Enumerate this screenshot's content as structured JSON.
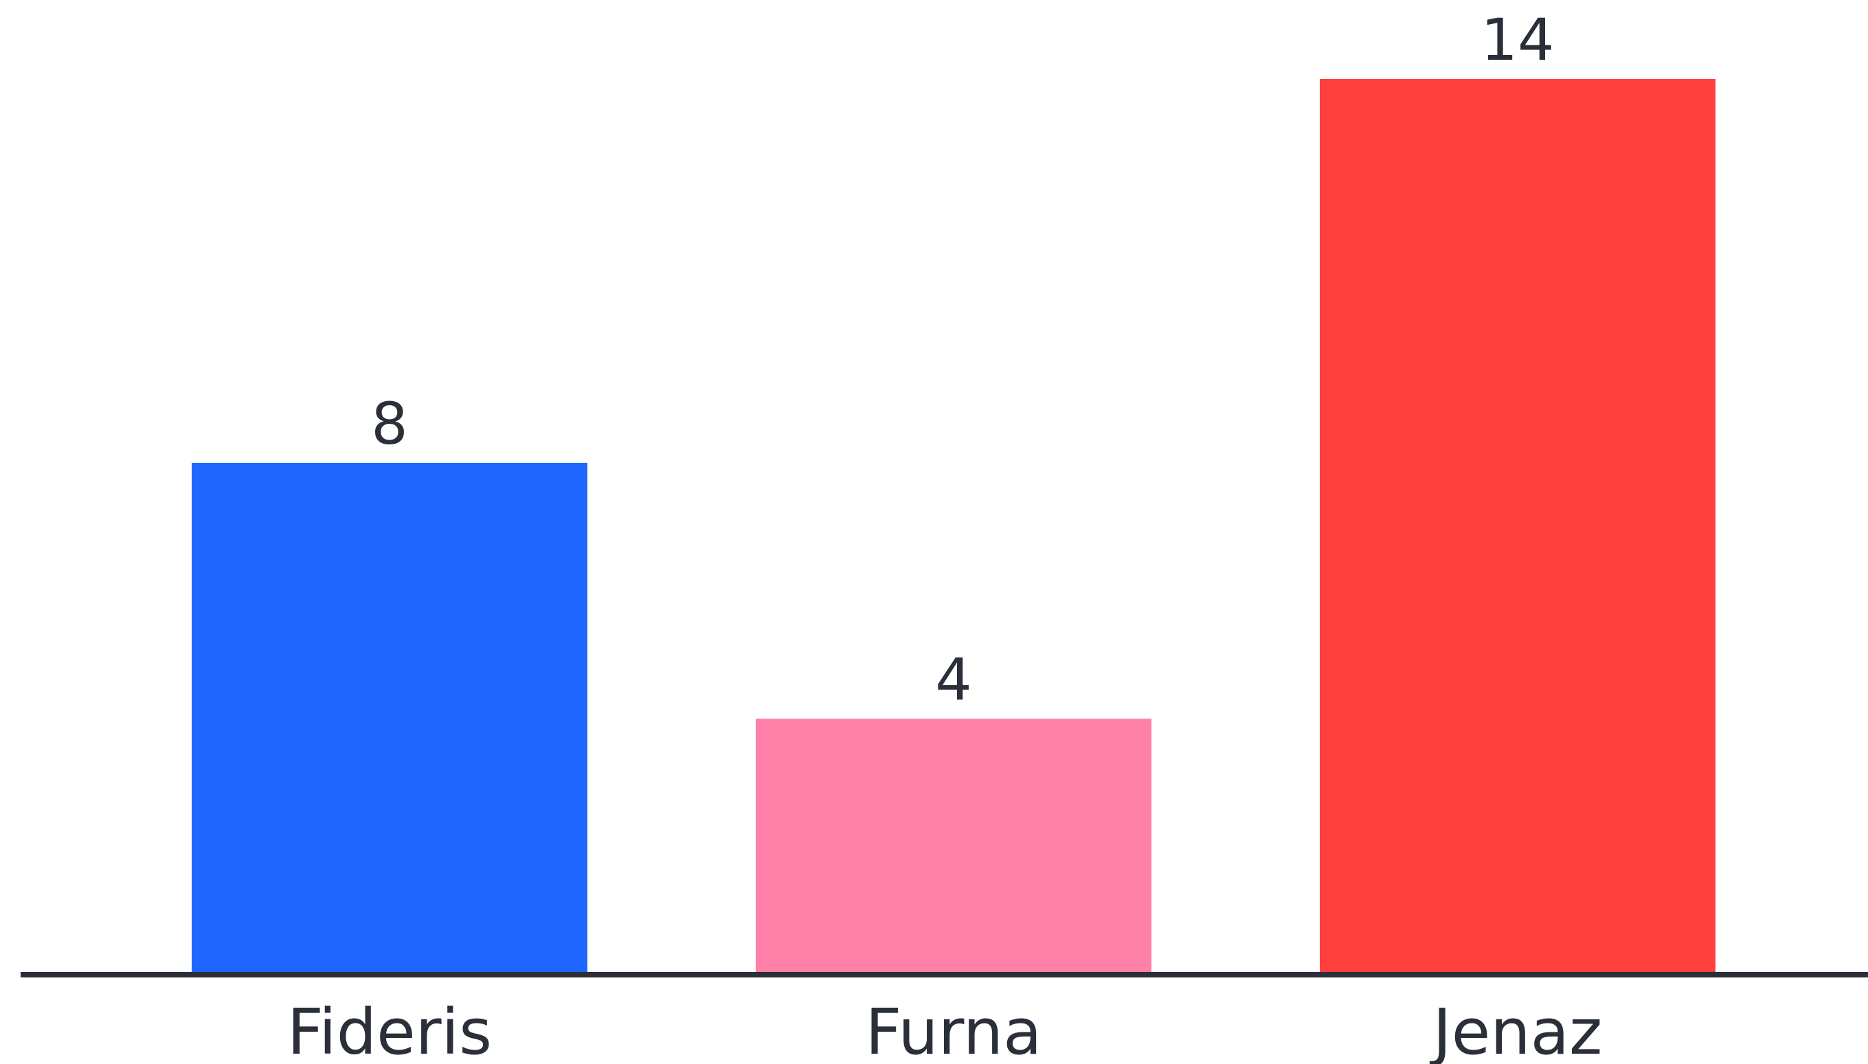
{
  "chart_data": {
    "type": "bar",
    "categories": [
      "Fideris",
      "Furna",
      "Jenaz"
    ],
    "values": [
      8,
      4,
      14
    ],
    "colors": [
      "#1f66ff",
      "#ff80a8",
      "#ff3f3d"
    ],
    "title": "",
    "xlabel": "",
    "ylabel": "",
    "ylim": [
      0,
      14
    ],
    "grid": false,
    "legend": "none",
    "show_value_labels": true
  }
}
